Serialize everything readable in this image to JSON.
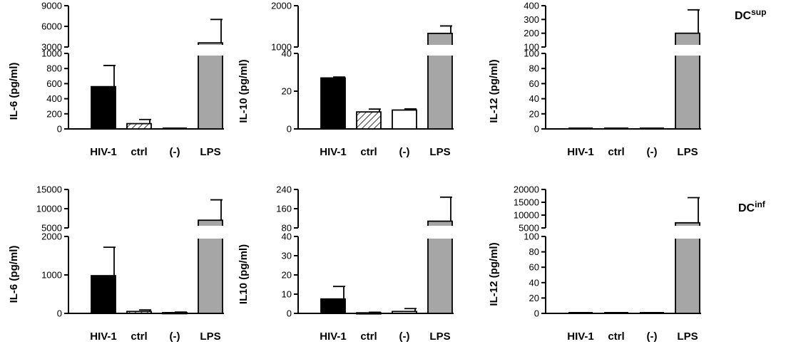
{
  "colors": {
    "HIV-1": "#000000",
    "ctrl": "#ffffff",
    "(-)": "#ffffff",
    "LPS": "#a6a6a6",
    "axis": "#000000"
  },
  "row_labels": [
    {
      "main": "DC",
      "sup": "sup"
    },
    {
      "main": "DC",
      "sup": "inf"
    }
  ],
  "chart_data": [
    {
      "type": "bar",
      "row": 0,
      "col": 0,
      "ylabel": "IL-6 (pg/ml)",
      "categories": [
        "HIV-1",
        "ctrl",
        "(-)",
        "LPS"
      ],
      "fills": [
        "solid",
        "hatched",
        "open",
        "gray"
      ],
      "values": [
        560,
        70,
        0,
        3600
      ],
      "errors": [
        280,
        55,
        0,
        3400
      ],
      "broken_axis": true,
      "lower_ylim": [
        0,
        1000
      ],
      "lower_ticks": [
        0,
        200,
        400,
        600,
        800,
        1000
      ],
      "upper_ylim": [
        3000,
        9000
      ],
      "upper_ticks": [
        3000,
        6000,
        9000
      ]
    },
    {
      "type": "bar",
      "row": 0,
      "col": 1,
      "ylabel": "IL-10 (pg/ml)",
      "categories": [
        "HIV-1",
        "ctrl",
        "(-)",
        "LPS"
      ],
      "fills": [
        "solid",
        "hatched",
        "open",
        "gray"
      ],
      "values": [
        27,
        9,
        10,
        1330
      ],
      "errors": [
        0.5,
        1.5,
        0.6,
        180
      ],
      "broken_axis": true,
      "lower_ylim": [
        0,
        40
      ],
      "lower_ticks": [
        0,
        20,
        40
      ],
      "upper_ylim": [
        1000,
        2000
      ],
      "upper_ticks": [
        1000,
        2000
      ]
    },
    {
      "type": "bar",
      "row": 0,
      "col": 2,
      "ylabel": "IL-12 (pg/ml)",
      "categories": [
        "HIV-1",
        "ctrl",
        "(-)",
        "LPS"
      ],
      "fills": [
        "solid",
        "hatched",
        "open",
        "gray"
      ],
      "values": [
        0,
        0,
        0,
        200
      ],
      "errors": [
        0,
        0,
        0,
        170
      ],
      "broken_axis": true,
      "lower_ylim": [
        0,
        100
      ],
      "lower_ticks": [
        0,
        20,
        40,
        60,
        80,
        100
      ],
      "upper_ylim": [
        100,
        400
      ],
      "upper_ticks": [
        100,
        200,
        300,
        400
      ]
    },
    {
      "type": "bar",
      "row": 1,
      "col": 0,
      "ylabel": "IL-6 (pg/ml)",
      "categories": [
        "HIV-1",
        "ctrl",
        "(-)",
        "LPS"
      ],
      "fills": [
        "solid",
        "hatched",
        "open",
        "gray"
      ],
      "values": [
        980,
        50,
        20,
        7000
      ],
      "errors": [
        740,
        40,
        15,
        5300
      ],
      "broken_axis": true,
      "lower_ylim": [
        0,
        2000
      ],
      "lower_ticks": [
        0,
        1000,
        2000
      ],
      "upper_ylim": [
        5000,
        15000
      ],
      "upper_ticks": [
        5000,
        10000,
        15000
      ]
    },
    {
      "type": "bar",
      "row": 1,
      "col": 1,
      "ylabel": "IL10 (pg/ml)",
      "categories": [
        "HIV-1",
        "ctrl",
        "(-)",
        "LPS"
      ],
      "fills": [
        "solid",
        "hatched",
        "open",
        "gray"
      ],
      "values": [
        7.5,
        0.3,
        1,
        108
      ],
      "errors": [
        6.5,
        0.3,
        1.5,
        100
      ],
      "broken_axis": true,
      "lower_ylim": [
        0,
        40
      ],
      "lower_ticks": [
        0,
        10,
        20,
        30,
        40
      ],
      "upper_ylim": [
        80,
        240
      ],
      "upper_ticks": [
        80,
        160,
        240
      ]
    },
    {
      "type": "bar",
      "row": 1,
      "col": 2,
      "ylabel": "IL-12 (pg/ml)",
      "categories": [
        "HIV-1",
        "ctrl",
        "(-)",
        "LPS"
      ],
      "fills": [
        "solid",
        "hatched",
        "open",
        "gray"
      ],
      "values": [
        0,
        0,
        0,
        7000
      ],
      "errors": [
        0,
        0,
        0,
        9800
      ],
      "broken_axis": true,
      "lower_ylim": [
        0,
        100
      ],
      "lower_ticks": [
        0,
        20,
        40,
        60,
        80,
        100
      ],
      "upper_ylim": [
        5000,
        20000
      ],
      "upper_ticks": [
        5000,
        10000,
        15000,
        20000
      ]
    }
  ]
}
